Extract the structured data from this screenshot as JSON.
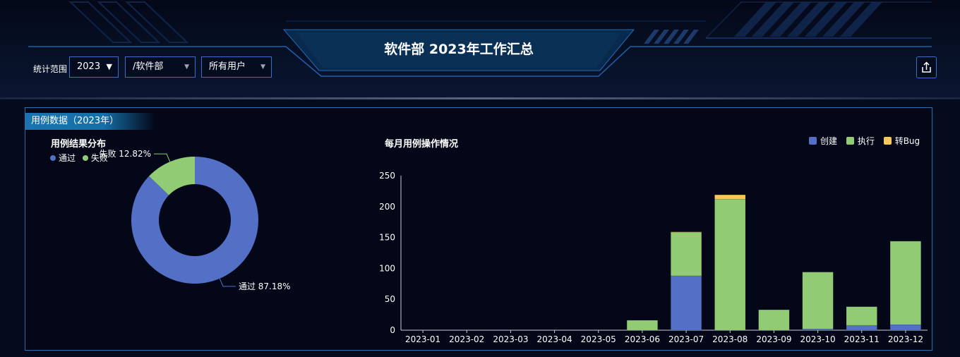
{
  "header": {
    "title": "软件部 2023年工作汇总",
    "filter_label": "统计范围",
    "year_select": "2023",
    "dept_select": "/软件部",
    "user_select": "所有用户"
  },
  "panel": {
    "title": "用例数据（2023年）"
  },
  "colors": {
    "pass": "#5470c6",
    "fail": "#91cc75",
    "create": "#5470c6",
    "execute": "#91cc75",
    "bug": "#fac858",
    "accent": "#2a6fb2"
  },
  "chart_data": [
    {
      "type": "pie",
      "title": "用例结果分布",
      "legend": [
        "通过",
        "失败"
      ],
      "slices": [
        {
          "name": "通过",
          "value": 87.18,
          "label": "通过  87.18%"
        },
        {
          "name": "失败",
          "value": 12.82,
          "label": "失败  12.82%"
        }
      ],
      "donut": true
    },
    {
      "type": "bar",
      "stacked": true,
      "title": "每月用例操作情况",
      "categories": [
        "2023-01",
        "2023-02",
        "2023-03",
        "2023-04",
        "2023-05",
        "2023-06",
        "2023-07",
        "2023-08",
        "2023-09",
        "2023-10",
        "2023-11",
        "2023-12"
      ],
      "series": [
        {
          "name": "创建",
          "values": [
            0,
            0,
            0,
            0,
            0,
            0,
            88,
            0,
            0,
            2,
            8,
            9
          ]
        },
        {
          "name": "执行",
          "values": [
            0,
            0,
            0,
            0,
            0,
            16,
            70,
            212,
            33,
            92,
            30,
            135
          ]
        },
        {
          "name": "转Bug",
          "values": [
            0,
            0,
            0,
            0,
            0,
            0,
            1,
            7,
            0,
            0,
            0,
            0
          ]
        }
      ],
      "yticks": [
        "0",
        "50",
        "100",
        "150",
        "200",
        "250"
      ],
      "ylim": [
        0,
        250
      ],
      "legend_position": "top-right",
      "grid": false
    }
  ]
}
